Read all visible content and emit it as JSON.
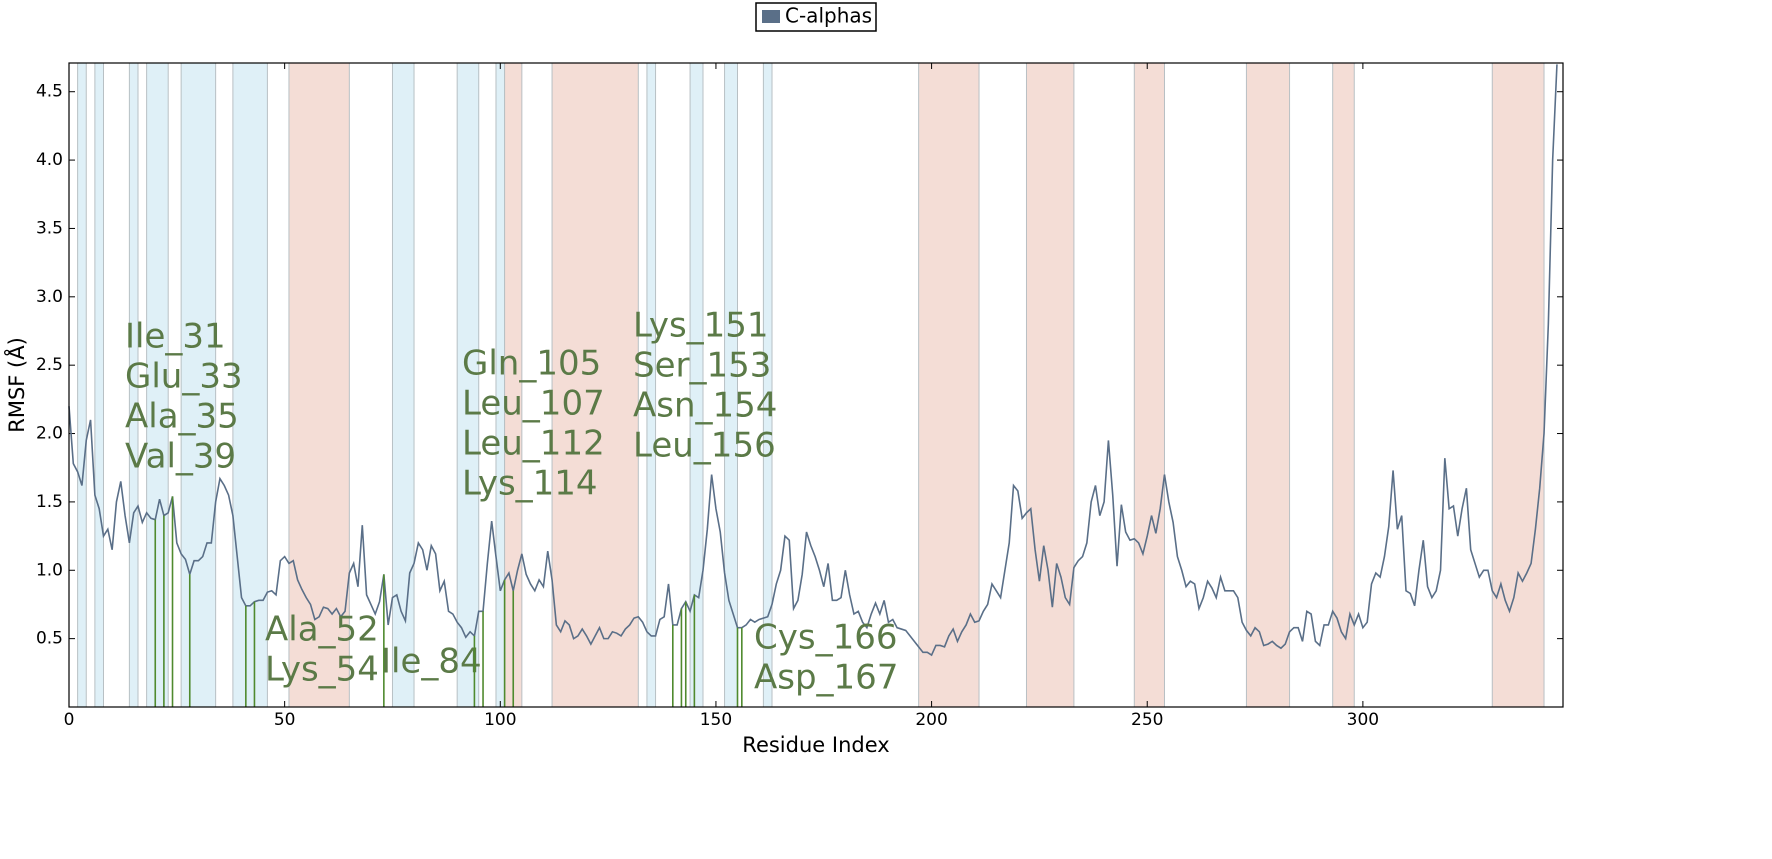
{
  "chart_data": {
    "type": "line",
    "xlabel": "Residue Index",
    "ylabel": "RMSF (Å)",
    "xlim": [
      0,
      346.4
    ],
    "ylim": [
      0,
      4.71
    ],
    "xticks": [
      0,
      50,
      100,
      150,
      200,
      250,
      300
    ],
    "yticks": [
      0.5,
      {
        "value": 1,
        "label": "1.0"
      },
      1.5,
      {
        "value": 2,
        "label": "2.0"
      },
      2.5,
      {
        "value": 3,
        "label": "3.0"
      },
      3.5,
      {
        "value": 4,
        "label": "4.0"
      },
      4.5
    ],
    "grid": false,
    "legend": "top",
    "series": [
      {
        "name": "C-alphas",
        "color": "#5a6f88",
        "values": [
          2.2,
          1.78,
          1.72,
          1.62,
          1.95,
          2.1,
          1.55,
          1.45,
          1.25,
          1.3,
          1.15,
          1.5,
          1.65,
          1.4,
          1.2,
          1.42,
          1.47,
          1.35,
          1.42,
          1.38,
          1.37,
          1.52,
          1.4,
          1.42,
          1.54,
          1.2,
          1.12,
          1.08,
          0.97,
          1.07,
          1.07,
          1.1,
          1.2,
          1.2,
          1.5,
          1.67,
          1.62,
          1.55,
          1.4,
          1.1,
          0.8,
          0.74,
          0.74,
          0.77,
          0.78,
          0.78,
          0.84,
          0.85,
          0.82,
          1.07,
          1.1,
          1.05,
          1.07,
          0.93,
          0.86,
          0.8,
          0.75,
          0.64,
          0.66,
          0.73,
          0.72,
          0.68,
          0.72,
          0.66,
          0.7,
          0.98,
          1.05,
          0.88,
          1.33,
          0.82,
          0.75,
          0.68,
          0.77,
          0.97,
          0.6,
          0.8,
          0.82,
          0.7,
          0.63,
          0.98,
          1.05,
          1.2,
          1.15,
          1.0,
          1.18,
          1.12,
          0.85,
          0.92,
          0.7,
          0.68,
          0.62,
          0.58,
          0.51,
          0.55,
          0.52,
          0.7,
          0.7,
          1.05,
          1.36,
          1.1,
          0.85,
          0.93,
          0.98,
          0.85,
          1.0,
          1.12,
          0.97,
          0.9,
          0.85,
          0.93,
          0.88,
          1.14,
          0.93,
          0.6,
          0.55,
          0.63,
          0.6,
          0.5,
          0.52,
          0.57,
          0.52,
          0.46,
          0.52,
          0.58,
          0.5,
          0.5,
          0.55,
          0.54,
          0.52,
          0.57,
          0.6,
          0.65,
          0.66,
          0.62,
          0.55,
          0.52,
          0.52,
          0.64,
          0.66,
          0.9,
          0.6,
          0.6,
          0.72,
          0.77,
          0.7,
          0.82,
          0.8,
          1.0,
          1.3,
          1.7,
          1.45,
          1.28,
          0.98,
          0.78,
          0.68,
          0.58,
          0.58,
          0.6,
          0.64,
          0.62,
          0.64,
          0.65,
          0.66,
          0.75,
          0.9,
          1.0,
          1.25,
          1.22,
          0.72,
          0.78,
          0.97,
          1.28,
          1.18,
          1.1,
          1.0,
          0.88,
          1.05,
          0.78,
          0.78,
          0.8,
          1.0,
          0.82,
          0.68,
          0.7,
          0.62,
          0.58,
          0.68,
          0.76,
          0.68,
          0.78,
          0.62,
          0.64,
          0.58,
          0.57,
          0.56,
          0.52,
          0.48,
          0.44,
          0.4,
          0.4,
          0.38,
          0.45,
          0.45,
          0.44,
          0.52,
          0.57,
          0.48,
          0.55,
          0.6,
          0.68,
          0.62,
          0.63,
          0.7,
          0.75,
          0.9,
          0.85,
          0.8,
          1.0,
          1.2,
          1.62,
          1.58,
          1.38,
          1.42,
          1.45,
          1.15,
          0.92,
          1.18,
          1.0,
          0.73,
          1.05,
          0.95,
          0.8,
          0.75,
          1.02,
          1.07,
          1.1,
          1.2,
          1.5,
          1.62,
          1.4,
          1.5,
          1.95,
          1.55,
          1.03,
          1.48,
          1.28,
          1.22,
          1.23,
          1.2,
          1.12,
          1.25,
          1.4,
          1.27,
          1.45,
          1.7,
          1.5,
          1.35,
          1.1,
          1.0,
          0.88,
          0.92,
          0.9,
          0.72,
          0.8,
          0.92,
          0.87,
          0.8,
          0.95,
          0.85,
          0.85,
          0.85,
          0.8,
          0.62,
          0.56,
          0.52,
          0.58,
          0.55,
          0.45,
          0.46,
          0.48,
          0.45,
          0.43,
          0.46,
          0.55,
          0.58,
          0.58,
          0.48,
          0.7,
          0.68,
          0.48,
          0.45,
          0.6,
          0.6,
          0.7,
          0.65,
          0.55,
          0.5,
          0.68,
          0.6,
          0.68,
          0.58,
          0.62,
          0.9,
          0.98,
          0.95,
          1.1,
          1.32,
          1.73,
          1.3,
          1.4,
          0.85,
          0.83,
          0.74,
          1.0,
          1.22,
          0.88,
          0.8,
          0.85,
          1.0,
          1.82,
          1.45,
          1.47,
          1.25,
          1.45,
          1.6,
          1.15,
          1.05,
          0.95,
          1.0,
          1.0,
          0.85,
          0.8,
          0.9,
          0.78,
          0.7,
          0.8,
          0.98,
          0.92,
          0.98,
          1.05,
          1.3,
          1.6,
          2.0,
          2.8,
          4.0,
          4.7
        ]
      }
    ],
    "blue_regions": {
      "color": "#dff0f7",
      "spans": [
        [
          2,
          4
        ],
        [
          6,
          8
        ],
        [
          14,
          16
        ],
        [
          18,
          23
        ],
        [
          26,
          34
        ],
        [
          38,
          46
        ],
        [
          75,
          80
        ],
        [
          90,
          95
        ],
        [
          99,
          101
        ],
        [
          134,
          136
        ],
        [
          144,
          147
        ],
        [
          152,
          155
        ],
        [
          161,
          163
        ]
      ]
    },
    "red_regions": {
      "color": "#f4ddd6",
      "spans": [
        [
          51,
          65
        ],
        [
          101,
          105
        ],
        [
          112,
          132
        ],
        [
          197,
          211
        ],
        [
          222,
          233
        ],
        [
          247,
          254
        ],
        [
          273,
          283
        ],
        [
          293,
          298
        ],
        [
          330,
          342
        ]
      ]
    },
    "contact_color": "#4f8a2e",
    "contact_groups": [
      {
        "labels": [
          "Ile_31",
          "Glu_33",
          "Ala_35",
          "Val_39"
        ],
        "residues": [
          20,
          22,
          24,
          28
        ]
      },
      {
        "labels": [
          "Ala_52",
          "Lys_54"
        ],
        "residues": [
          41,
          43
        ]
      },
      {
        "labels": [
          "Ile_84"
        ],
        "residues": [
          73
        ]
      },
      {
        "labels": [
          "Gln_105",
          "Leu_107",
          "Leu_112",
          "Lys_114"
        ],
        "residues": [
          94,
          96,
          101,
          103
        ]
      },
      {
        "labels": [
          "Lys_151",
          "Ser_153",
          "Asn_154",
          "Leu_156"
        ],
        "residues": [
          140,
          142,
          143,
          145
        ]
      },
      {
        "labels": [
          "Cys_166",
          "Asp_167"
        ],
        "residues": [
          155,
          156
        ]
      }
    ]
  }
}
